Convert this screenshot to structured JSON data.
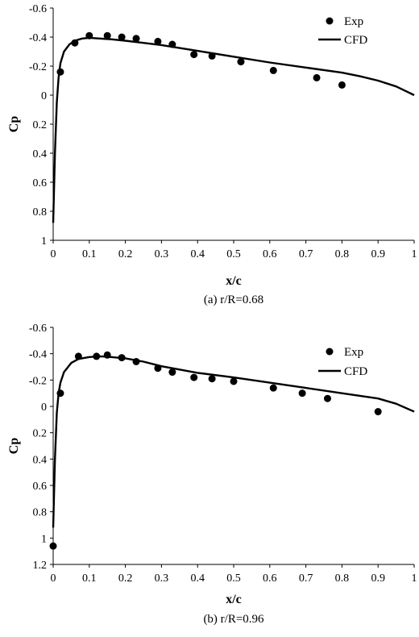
{
  "chart_data": [
    {
      "type": "line",
      "caption": "(a) r/R=0.68",
      "xlabel": "x/c",
      "ylabel": "Cp",
      "xlim": [
        0,
        1
      ],
      "ylim": [
        1,
        -0.6
      ],
      "y_inverted": true,
      "xticks": [
        "0",
        "0.1",
        "0.2",
        "0.3",
        "0.4",
        "0.5",
        "0.6",
        "0.7",
        "0.8",
        "0.9",
        "1"
      ],
      "yticks": [
        "-0.6",
        "-0.4",
        "-0.2",
        "0",
        "0.2",
        "0.4",
        "0.6",
        "0.8",
        "1"
      ],
      "legend": {
        "position": "top-right",
        "entries": [
          "Exp",
          "CFD"
        ]
      },
      "series": [
        {
          "name": "Exp",
          "kind": "scatter",
          "x": [
            0.02,
            0.06,
            0.1,
            0.15,
            0.19,
            0.23,
            0.29,
            0.33,
            0.39,
            0.44,
            0.52,
            0.61,
            0.73,
            0.8
          ],
          "y": [
            -0.16,
            -0.36,
            -0.41,
            -0.41,
            -0.4,
            -0.39,
            -0.37,
            -0.35,
            -0.28,
            -0.27,
            -0.23,
            -0.17,
            -0.12,
            -0.07
          ]
        },
        {
          "name": "CFD",
          "kind": "line",
          "x": [
            0.0,
            0.005,
            0.01,
            0.015,
            0.02,
            0.03,
            0.045,
            0.06,
            0.08,
            0.1,
            0.13,
            0.16,
            0.2,
            0.25,
            0.3,
            0.4,
            0.5,
            0.6,
            0.7,
            0.8,
            0.85,
            0.9,
            0.95,
            1.0
          ],
          "y": [
            0.88,
            0.4,
            0.05,
            -0.12,
            -0.22,
            -0.3,
            -0.35,
            -0.375,
            -0.39,
            -0.395,
            -0.39,
            -0.385,
            -0.375,
            -0.36,
            -0.345,
            -0.305,
            -0.265,
            -0.225,
            -0.19,
            -0.155,
            -0.13,
            -0.1,
            -0.06,
            0.0
          ]
        }
      ]
    },
    {
      "type": "line",
      "caption": "(b) r/R=0.96",
      "xlabel": "x/c",
      "ylabel": "Cp",
      "xlim": [
        0,
        1
      ],
      "ylim": [
        1.2,
        -0.6
      ],
      "y_inverted": true,
      "xticks": [
        "0",
        "0.1",
        "0.2",
        "0.3",
        "0.4",
        "0.5",
        "0.6",
        "0.7",
        "0.8",
        "0.9",
        "1"
      ],
      "yticks": [
        "-0.6",
        "-0.4",
        "-0.2",
        "0",
        "0.2",
        "0.4",
        "0.6",
        "0.8",
        "1",
        "1.2"
      ],
      "legend": {
        "position": "top-right",
        "entries": [
          "Exp",
          "CFD"
        ]
      },
      "series": [
        {
          "name": "Exp",
          "kind": "scatter",
          "x": [
            0.0,
            0.02,
            0.07,
            0.12,
            0.15,
            0.19,
            0.23,
            0.29,
            0.33,
            0.39,
            0.44,
            0.5,
            0.61,
            0.69,
            0.76,
            0.9
          ],
          "y": [
            1.06,
            -0.1,
            -0.38,
            -0.38,
            -0.39,
            -0.37,
            -0.34,
            -0.29,
            -0.26,
            -0.22,
            -0.21,
            -0.19,
            -0.14,
            -0.1,
            -0.06,
            0.04
          ]
        },
        {
          "name": "CFD",
          "kind": "line",
          "x": [
            0.0,
            0.005,
            0.01,
            0.015,
            0.02,
            0.03,
            0.05,
            0.07,
            0.1,
            0.13,
            0.16,
            0.2,
            0.25,
            0.3,
            0.4,
            0.5,
            0.6,
            0.7,
            0.8,
            0.85,
            0.9,
            0.95,
            1.0
          ],
          "y": [
            0.92,
            0.4,
            0.05,
            -0.1,
            -0.18,
            -0.26,
            -0.33,
            -0.36,
            -0.375,
            -0.38,
            -0.375,
            -0.365,
            -0.34,
            -0.305,
            -0.255,
            -0.22,
            -0.18,
            -0.14,
            -0.1,
            -0.08,
            -0.06,
            -0.02,
            0.04
          ]
        }
      ]
    }
  ]
}
